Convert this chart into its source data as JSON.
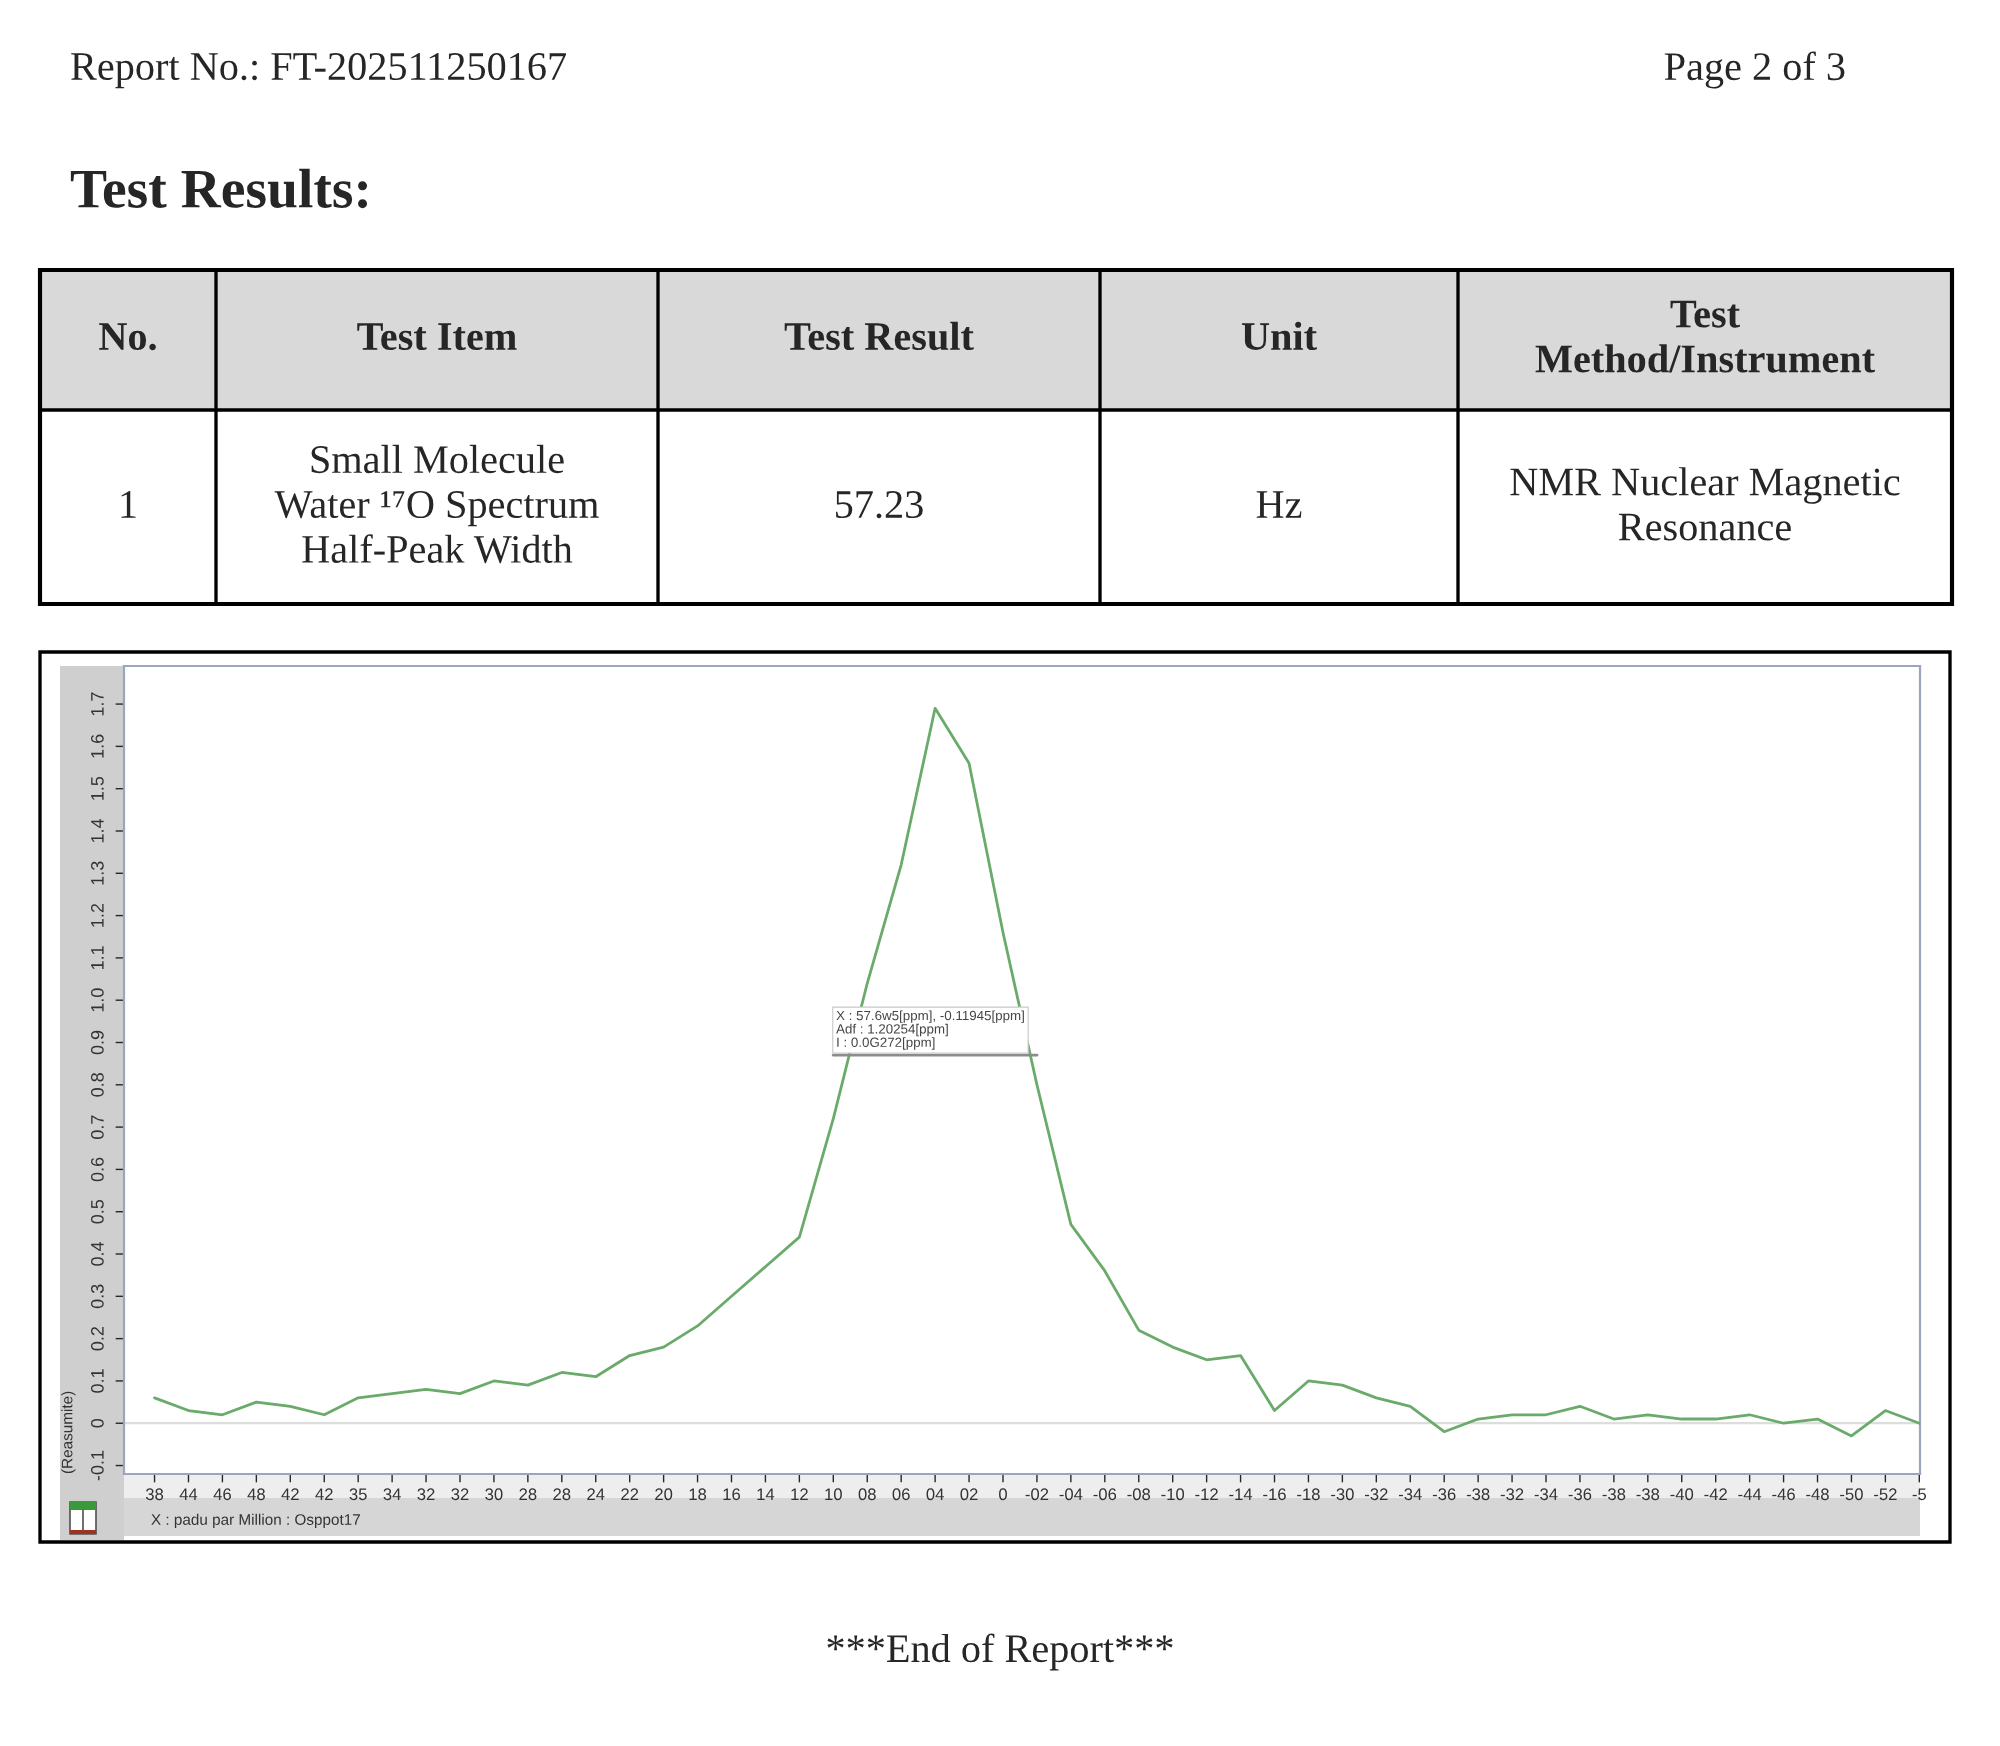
{
  "chart_data": {
    "type": "line",
    "title": "Test Results:",
    "xlabel": "X : padu par Million : Osppot17",
    "ylabel": "(Reasumite)",
    "annotations": [
      "Report No.: FT-202511250167",
      "Page 2 of 3",
      "No.",
      "Test Item",
      "Test Result",
      "Unit",
      "Test\nMethod/Instrument",
      "1",
      "Small Molecule\nWater ¹⁷O Spectrum\nHalf-Peak Width",
      "57.23",
      "Hz",
      "NMR Nuclear Magnetic\nResonance",
      {
        "text": "X : 57.6w5[ppm], -0.11945[ppm]\nAdf : 1.20254[ppm]\nI : 0.0G272[ppm]",
        "x": "10",
        "y": 0.87
      },
      "***End of Report***"
    ],
    "categories": [
      "38",
      "44",
      "46",
      "48",
      "42",
      "42",
      "35",
      "34",
      "32",
      "32",
      "30",
      "28",
      "28",
      "24",
      "22",
      "20",
      "18",
      "16",
      "14",
      "12",
      "10",
      "08",
      "06",
      "04",
      "02",
      "0",
      "-02",
      "-04",
      "-06",
      "-08",
      "-10",
      "-12",
      "-14",
      "-16",
      "-18",
      "-30",
      "-32",
      "-34",
      "-36",
      "-38",
      "-32",
      "-34",
      "-36",
      "-38",
      "-38",
      "-40",
      "-42",
      "-44",
      "-46",
      "-48",
      "-50",
      "-52",
      "-5"
    ],
    "series": [
      {
        "color": "#6aaa6a",
        "values": [
          0.06,
          0.03,
          0.02,
          0.05,
          0.04,
          0.02,
          0.06,
          0.07,
          0.08,
          0.07,
          0.1,
          0.09,
          0.12,
          0.11,
          0.16,
          0.18,
          0.23,
          0.3,
          0.37,
          0.44,
          0.72,
          1.04,
          1.32,
          1.69,
          1.56,
          1.16,
          0.8,
          0.47,
          0.36,
          0.22,
          0.18,
          0.15,
          0.16,
          0.03,
          0.1,
          0.09,
          0.06,
          0.04,
          -0.02,
          0.01,
          0.02,
          0.02,
          0.04,
          0.01,
          0.02,
          0.01,
          0.01,
          0.02,
          0.0,
          0.01,
          -0.03,
          0.03,
          0.0
        ]
      },
      {
        "color": "#8c8c8c",
        "values": [
          null,
          null,
          null,
          null,
          null,
          null,
          null,
          null,
          null,
          null,
          null,
          null,
          null,
          null,
          null,
          null,
          null,
          null,
          null,
          null,
          0.87,
          0.87,
          0.87,
          0.87,
          0.87,
          0.87,
          0.87,
          null,
          null,
          null,
          null,
          null,
          null,
          null,
          null,
          null,
          null,
          null,
          null,
          null,
          null,
          null,
          null,
          null,
          null,
          null,
          null,
          null,
          null,
          null,
          null,
          null,
          null
        ]
      }
    ],
    "ref_lines": [
      {
        "axis": "y",
        "value": 0,
        "color": "#dddddd"
      }
    ],
    "ylim": [
      -0.12,
      1.79
    ],
    "yticks": [
      -0.1,
      0,
      0.1,
      0.2,
      0.3,
      0.4,
      0.5,
      0.6,
      0.7,
      0.8,
      0.9,
      {
        "value": 1,
        "label": "1.0"
      },
      1.1,
      1.2,
      1.3,
      1.4,
      1.5,
      1.6,
      1.7
    ]
  }
}
